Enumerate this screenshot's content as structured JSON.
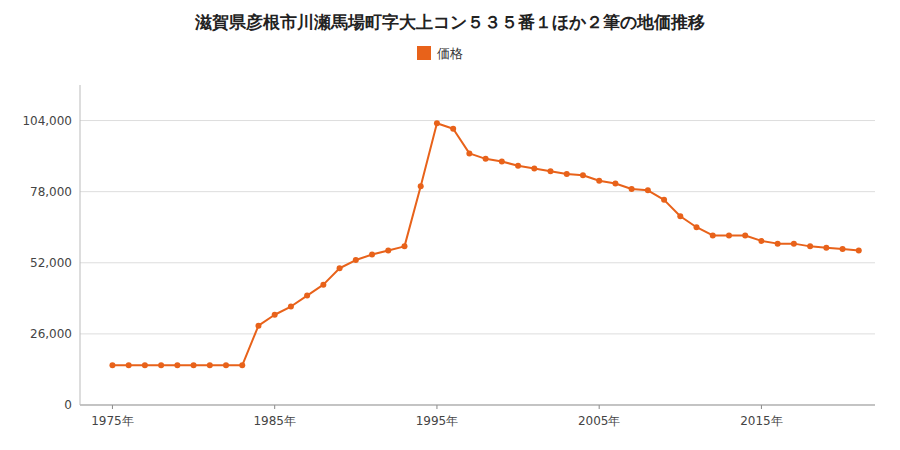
{
  "chart_data": {
    "type": "line",
    "title": "滋賀県彦根市川瀬馬場町字大上コン５３５番１ほか２筆の地価推移",
    "x": [
      1975,
      1976,
      1977,
      1978,
      1979,
      1980,
      1981,
      1982,
      1983,
      1984,
      1985,
      1986,
      1987,
      1988,
      1989,
      1990,
      1991,
      1992,
      1993,
      1994,
      1995,
      1996,
      1997,
      1998,
      1999,
      2000,
      2001,
      2002,
      2003,
      2004,
      2005,
      2006,
      2007,
      2008,
      2009,
      2010,
      2011,
      2012,
      2013,
      2014,
      2015,
      2016,
      2017,
      2018,
      2019,
      2020,
      2021
    ],
    "series": [
      {
        "name": "価格",
        "color": "#e8621a",
        "marker": "circle",
        "values": [
          14500,
          14500,
          14500,
          14500,
          14500,
          14500,
          14500,
          14500,
          14500,
          29000,
          33000,
          36000,
          40000,
          44000,
          50000,
          53000,
          55000,
          56500,
          58000,
          80000,
          103000,
          101000,
          92000,
          90000,
          89000,
          87500,
          86500,
          85500,
          84500,
          84000,
          82000,
          81000,
          79000,
          78500,
          75000,
          69000,
          65000,
          62000,
          62000,
          62000,
          60000,
          59000,
          59000,
          58000,
          57500,
          57000,
          56500
        ]
      }
    ],
    "xlim": [
      1973,
      2022
    ],
    "xticks": [
      {
        "value": 1975,
        "label": "1975年"
      },
      {
        "value": 1985,
        "label": "1985年"
      },
      {
        "value": 1995,
        "label": "1995年"
      },
      {
        "value": 2005,
        "label": "2005年"
      },
      {
        "value": 2015,
        "label": "2015年"
      }
    ],
    "ylim": [
      0,
      117000
    ],
    "yticks": [
      0,
      {
        "value": 26000,
        "label": "26,000"
      },
      {
        "value": 52000,
        "label": "52,000"
      },
      {
        "value": 78000,
        "label": "78,000"
      },
      {
        "value": 104000,
        "label": "104,000"
      }
    ],
    "grid": "y",
    "legend": "top"
  }
}
